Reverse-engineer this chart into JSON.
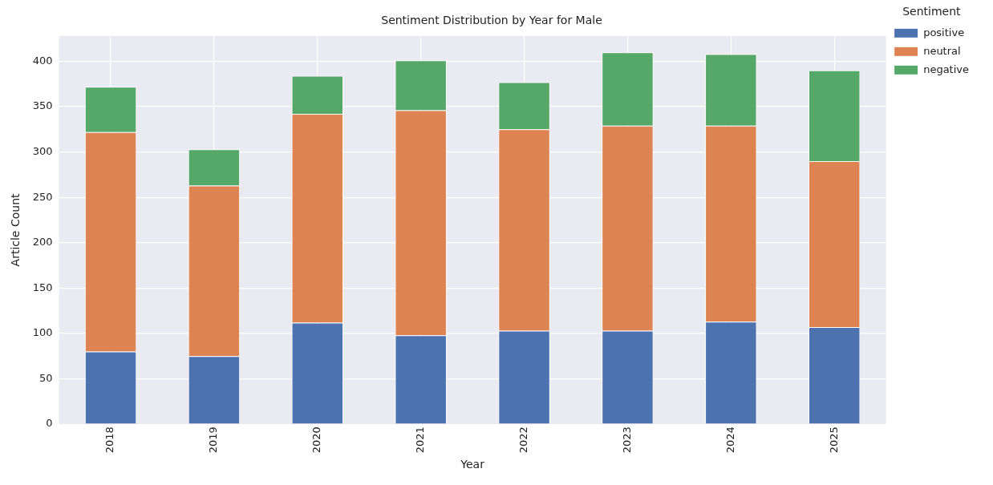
{
  "chart_data": {
    "type": "bar",
    "title": "Sentiment Distribution by Year for Male",
    "xlabel": "Year",
    "ylabel": "Article Count",
    "legend_title": "Sentiment",
    "categories": [
      "2018",
      "2019",
      "2020",
      "2021",
      "2022",
      "2023",
      "2024",
      "2025"
    ],
    "series": [
      {
        "name": "positive",
        "color": "#4c72b0",
        "values": [
          80,
          75,
          112,
          98,
          103,
          103,
          113,
          107
        ]
      },
      {
        "name": "neutral",
        "color": "#dd8452",
        "values": [
          242,
          188,
          230,
          248,
          222,
          226,
          216,
          183
        ]
      },
      {
        "name": "negative",
        "color": "#55a868",
        "values": [
          50,
          40,
          42,
          55,
          52,
          81,
          79,
          100
        ]
      }
    ],
    "stacked": true,
    "ylim": [
      0,
      428
    ],
    "yticks": [
      0,
      50,
      100,
      150,
      200,
      250,
      300,
      350,
      400
    ],
    "grid": true,
    "legend": "top right"
  }
}
